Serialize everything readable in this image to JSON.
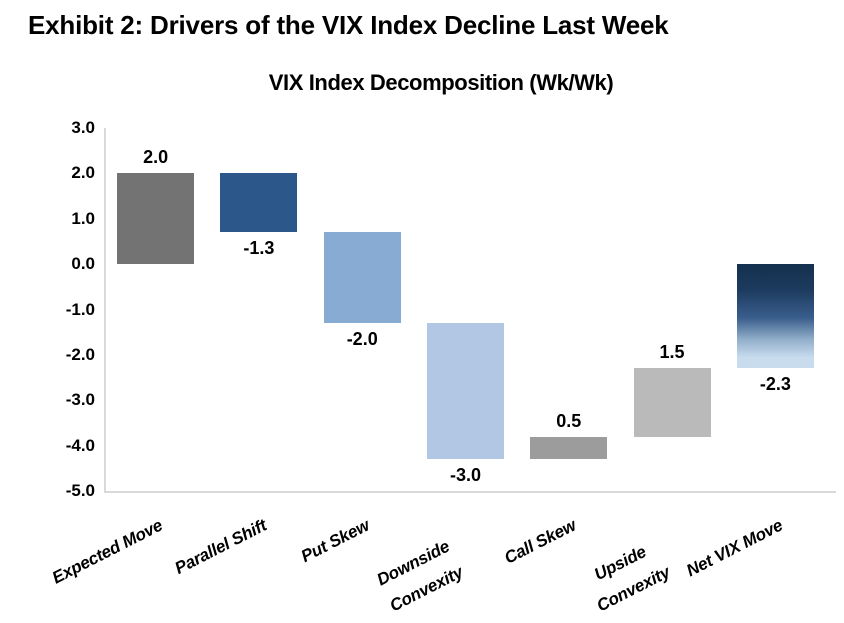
{
  "page": {
    "exhibit_title": "Exhibit 2: Drivers of the VIX Index Decline Last Week"
  },
  "chart_data": {
    "type": "bar",
    "subtype": "waterfall",
    "title": "VIX Index Decomposition (Wk/Wk)",
    "categories": [
      "Expected Move",
      "Parallel Shift",
      "Put Skew",
      "Downside\nConvexity",
      "Call Skew",
      "Upside\nConvexity",
      "Net VIX Move"
    ],
    "values": [
      2.0,
      -1.3,
      -2.0,
      -3.0,
      0.5,
      1.5,
      -2.3
    ],
    "value_labels": [
      "2.0",
      "-1.3",
      "-2.0",
      "-3.0",
      "0.5",
      "1.5",
      "-2.3"
    ],
    "bar_ranges": [
      [
        0.0,
        2.0
      ],
      [
        0.7,
        2.0
      ],
      [
        -1.3,
        0.7
      ],
      [
        -4.3,
        -1.3
      ],
      [
        -4.3,
        -3.8
      ],
      [
        -3.8,
        -2.3
      ],
      [
        -2.3,
        0.0
      ]
    ],
    "label_side": [
      "above",
      "below",
      "below",
      "below",
      "above",
      "above",
      "below"
    ],
    "bar_colors": [
      "#737373",
      "#2B578A",
      "#88ABD3",
      "#B1C7E4",
      "#9C9C9C",
      "#BABABA",
      "gradient:#14304E,#C9DCEE"
    ],
    "ylim": [
      -5.0,
      3.0
    ],
    "ytick_labels": [
      "3.0",
      "2.0",
      "1.0",
      "0.0",
      "-1.0",
      "-2.0",
      "-3.0",
      "-4.0",
      "-5.0"
    ],
    "axis_color": "#D9D9D9",
    "grid": false,
    "legend": "none",
    "xlabel": "",
    "ylabel": ""
  }
}
